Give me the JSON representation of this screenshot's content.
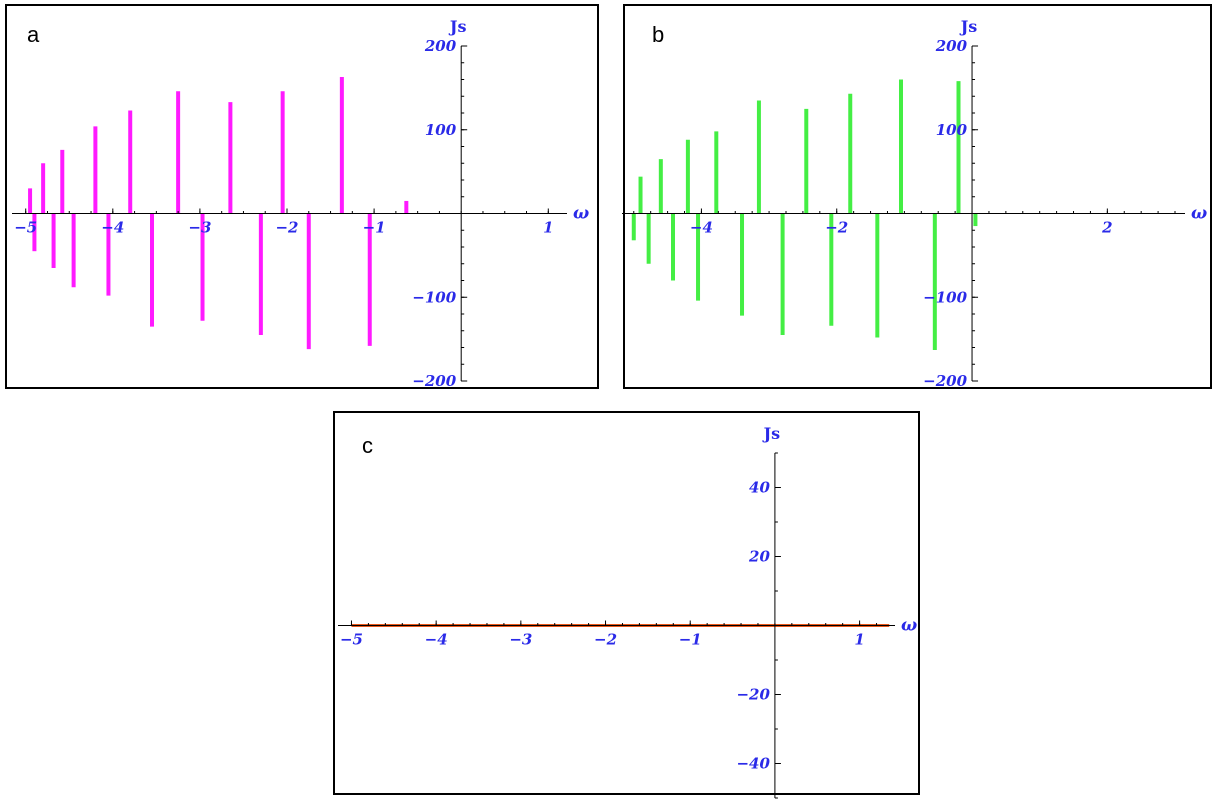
{
  "chart_data": [
    {
      "panel": "a",
      "type": "bar",
      "xlabel": "ω",
      "ylabel": "Js",
      "xlim": [
        -5.1,
        1.1
      ],
      "ylim": [
        -200,
        200
      ],
      "xticks": [
        -5,
        -4,
        -3,
        -2,
        -1,
        1
      ],
      "yticks": [
        200,
        100,
        -100,
        -200
      ],
      "grid": false,
      "bar_color": "#ff1aff",
      "series": [
        {
          "x": [
            -4.95,
            -4.9,
            -4.8,
            -4.68,
            -4.58,
            -4.45,
            -4.2,
            -4.05,
            -3.8,
            -3.55,
            -3.25,
            -2.97,
            -2.65,
            -2.3,
            -2.05,
            -1.75,
            -1.37,
            -1.05,
            -0.63,
            -0.27,
            0.33
          ],
          "values": [
            30,
            -45,
            60,
            -65,
            76,
            -88,
            104,
            -98,
            123,
            -135,
            146,
            -128,
            133,
            -145,
            146,
            -162,
            163,
            -158,
            15,
            0,
            0
          ]
        }
      ]
    },
    {
      "panel": "b",
      "type": "bar",
      "xlabel": "ω",
      "ylabel": "Js",
      "xlim": [
        -5.1,
        3.0
      ],
      "ylim": [
        -200,
        200
      ],
      "xticks": [
        -4,
        -2,
        2
      ],
      "yticks": [
        200,
        100,
        -100,
        -200
      ],
      "grid": false,
      "bar_color": "#44ee44",
      "series": [
        {
          "x": [
            -5.0,
            -4.9,
            -4.78,
            -4.6,
            -4.42,
            -4.2,
            -4.05,
            -3.78,
            -3.4,
            -3.15,
            -2.8,
            -2.45,
            -2.08,
            -1.8,
            -1.4,
            -1.05,
            -0.55,
            -0.2,
            0.05
          ],
          "values": [
            -32,
            44,
            -60,
            65,
            -80,
            88,
            -104,
            98,
            -122,
            135,
            -145,
            125,
            -134,
            143,
            -148,
            160,
            -163,
            158,
            -15
          ]
        }
      ]
    },
    {
      "panel": "c",
      "type": "line",
      "xlabel": "ω",
      "ylabel": "Js",
      "xlim": [
        -5.1,
        1.3
      ],
      "ylim": [
        -50,
        50
      ],
      "xticks": [
        -5,
        -4,
        -3,
        -2,
        -1,
        1
      ],
      "yticks": [
        40,
        20,
        -20,
        -40
      ],
      "grid": false,
      "line_color": "#e8581c",
      "series": [
        {
          "x": [
            -5.0,
            1.35
          ],
          "values": [
            0,
            0
          ]
        }
      ]
    }
  ],
  "panels": {
    "a": {
      "letter": "a"
    },
    "b": {
      "letter": "b"
    },
    "c": {
      "letter": "c"
    }
  }
}
